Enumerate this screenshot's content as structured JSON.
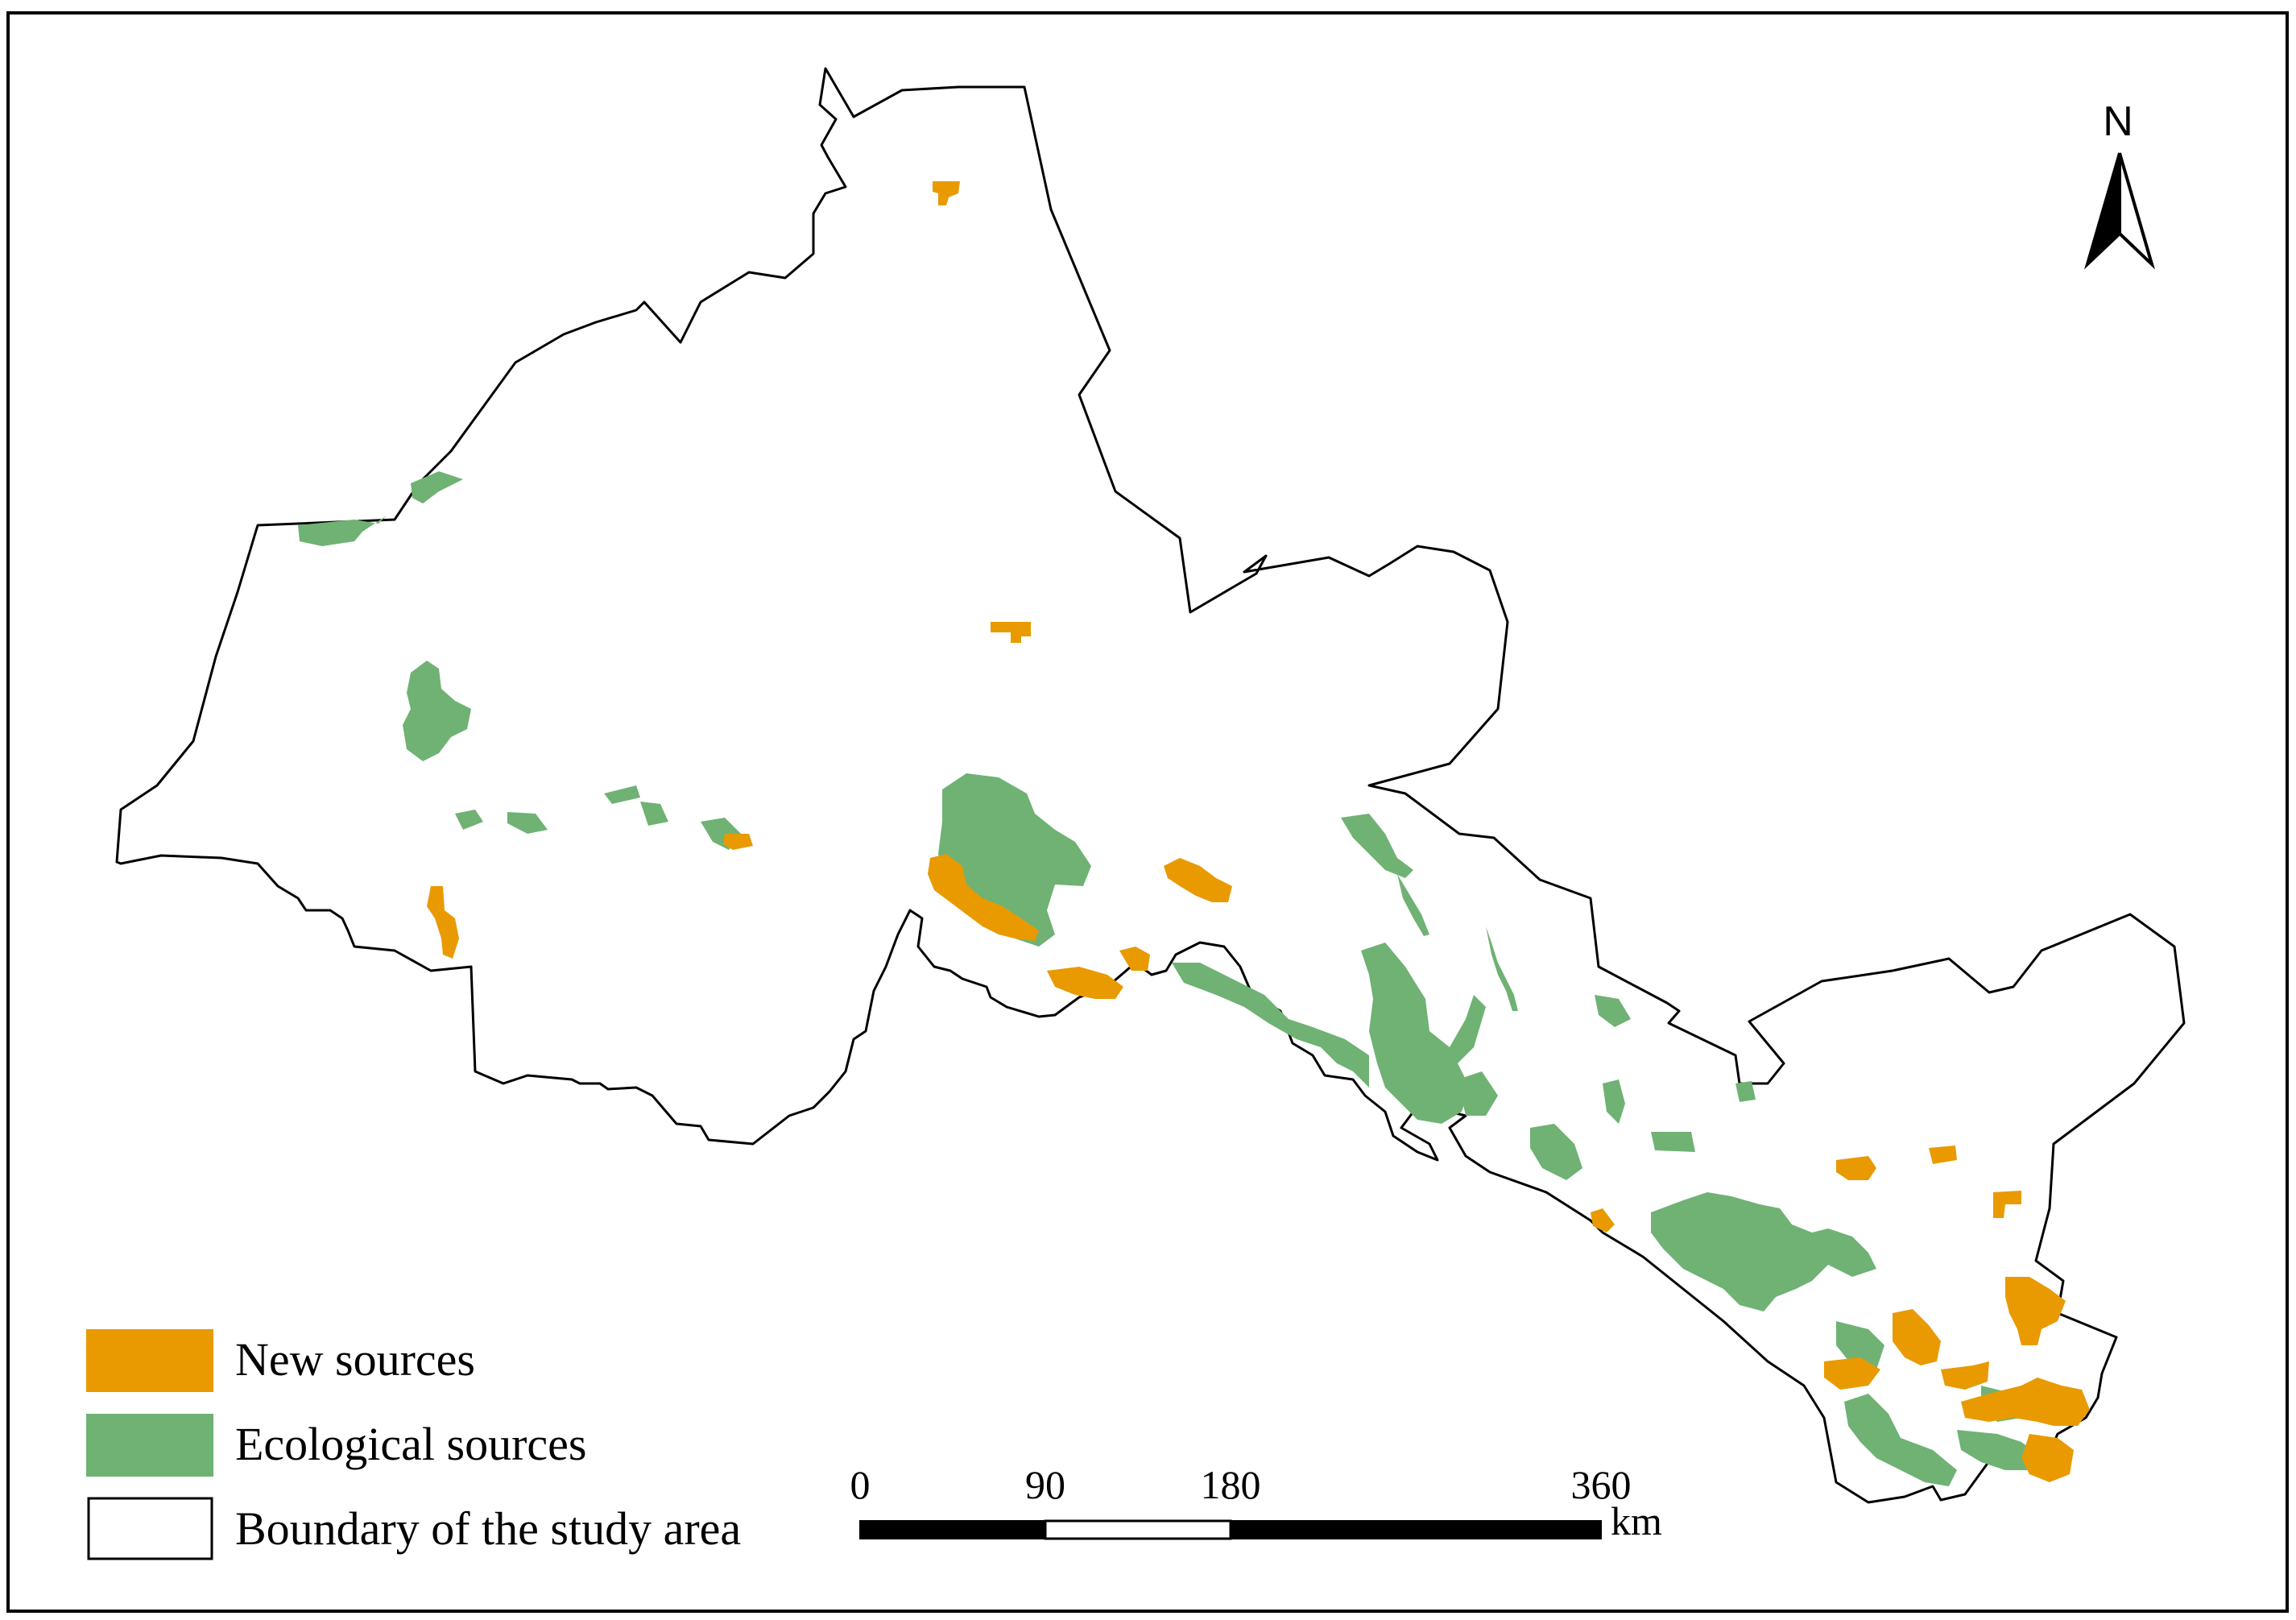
{
  "colors": {
    "new_sources": "#e89a00",
    "ecological_sources": "#6fb274",
    "boundary_stroke": "#000000",
    "frame": "#000000",
    "background": "#ffffff"
  },
  "north_arrow": {
    "label": "N",
    "icon": "north-arrow-icon"
  },
  "legend": {
    "items": [
      {
        "label": "New sources",
        "swatch": "new_sources"
      },
      {
        "label": "Ecological sources",
        "swatch": "ecological_sources"
      },
      {
        "label": "Boundary of the study area",
        "swatch": "boundary"
      }
    ]
  },
  "scale_bar": {
    "ticks": [
      "0",
      "90",
      "180",
      "360"
    ],
    "unit": "km"
  }
}
